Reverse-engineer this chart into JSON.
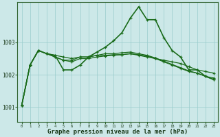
{
  "background_color": "#cce8e8",
  "grid_color": "#99cccc",
  "line_color": "#1a6b1a",
  "xlabel": "Graphe pression niveau de la mer (hPa)",
  "xlabel_fontsize": 6.5,
  "ytick_labels": [
    "1001",
    "1002",
    "1003"
  ],
  "ytick_vals": [
    1001.0,
    1002.0,
    1003.0
  ],
  "xlim": [
    -0.5,
    23.5
  ],
  "ylim": [
    1000.55,
    1004.25
  ],
  "series": [
    [
      1001.05,
      1002.3,
      1002.75,
      1002.65,
      1002.6,
      1002.15,
      1002.15,
      1002.3,
      1002.55,
      1002.7,
      1002.85,
      1003.05,
      1003.3,
      1003.75,
      1004.1,
      1003.7,
      1003.7,
      1003.15,
      1002.75,
      1002.55,
      1002.15,
      1002.15,
      1001.95,
      1001.85
    ],
    [
      1001.05,
      1002.3,
      1002.75,
      1002.65,
      1002.6,
      1002.55,
      1002.5,
      1002.55,
      1002.55,
      1002.6,
      1002.6,
      1002.62,
      1002.62,
      1002.65,
      1002.62,
      1002.58,
      1002.5,
      1002.45,
      1002.4,
      1002.35,
      1002.25,
      1002.15,
      1002.1,
      1002.05
    ],
    [
      1001.05,
      1002.3,
      1002.75,
      1002.65,
      1002.55,
      1002.45,
      1002.4,
      1002.5,
      1002.5,
      1002.55,
      1002.58,
      1002.6,
      1002.62,
      1002.65,
      1002.6,
      1002.55,
      1002.5,
      1002.4,
      1002.3,
      1002.2,
      1002.1,
      1002.05,
      1001.95,
      1001.9
    ],
    [
      1001.05,
      1002.3,
      1002.75,
      1002.65,
      1002.55,
      1002.45,
      1002.45,
      1002.55,
      1002.55,
      1002.6,
      1002.65,
      1002.65,
      1002.68,
      1002.7,
      1002.65,
      1002.6,
      1002.52,
      1002.42,
      1002.32,
      1002.22,
      1002.12,
      1002.05,
      1001.95,
      1001.85
    ]
  ]
}
